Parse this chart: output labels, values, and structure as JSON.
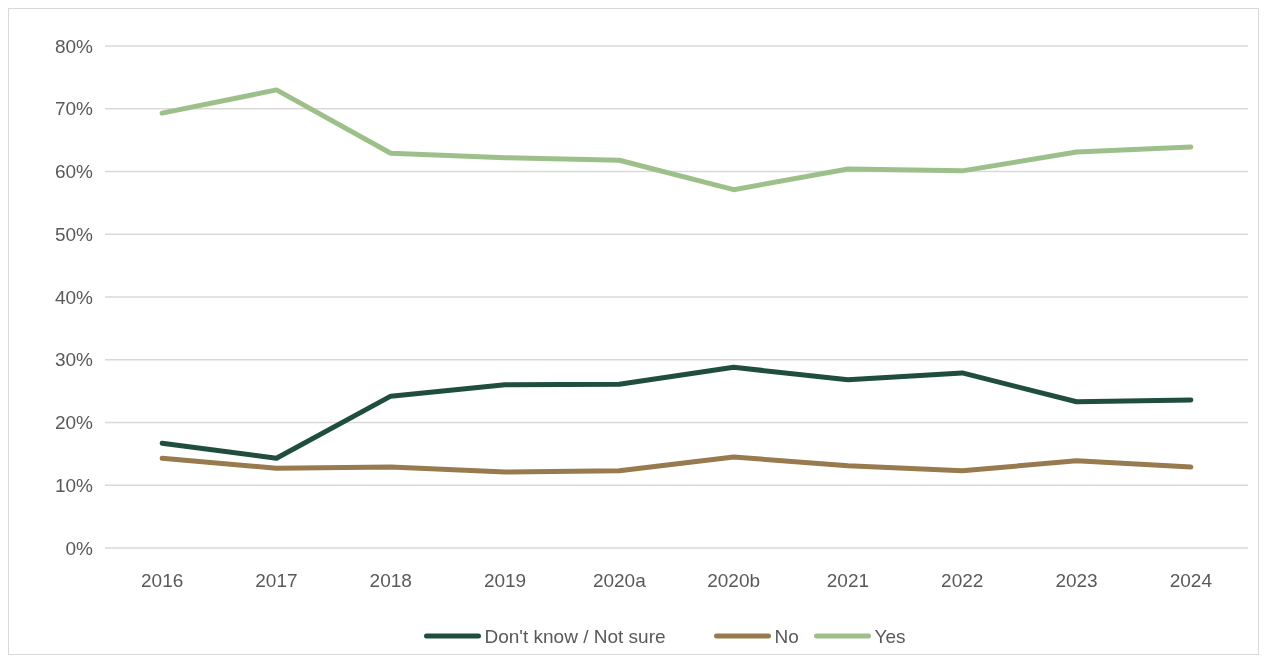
{
  "chart_data": {
    "type": "line",
    "categories": [
      "2016",
      "2017",
      "2018",
      "2019",
      "2020a",
      "2020b",
      "2021",
      "2022",
      "2023",
      "2024"
    ],
    "series": [
      {
        "name": "Don't know / Not sure",
        "color": "#1f4e3d",
        "values": [
          16.7,
          14.3,
          24.2,
          26.0,
          26.1,
          28.8,
          26.8,
          27.9,
          23.3,
          23.6
        ]
      },
      {
        "name": "No",
        "color": "#977a4e",
        "values": [
          14.3,
          12.7,
          12.9,
          12.1,
          12.3,
          14.5,
          13.1,
          12.3,
          13.9,
          12.9
        ]
      },
      {
        "name": "Yes",
        "color": "#9dc08b",
        "values": [
          69.3,
          73.0,
          62.9,
          62.2,
          61.8,
          57.1,
          60.4,
          60.1,
          63.1,
          63.9
        ]
      }
    ],
    "ylim": [
      0,
      80
    ],
    "yticks": [
      {
        "value": 0,
        "label": "0%"
      },
      {
        "value": 10,
        "label": "10%"
      },
      {
        "value": 20,
        "label": "20%"
      },
      {
        "value": 30,
        "label": "30%"
      },
      {
        "value": 40,
        "label": "40%"
      },
      {
        "value": 50,
        "label": "50%"
      },
      {
        "value": 60,
        "label": "60%"
      },
      {
        "value": 70,
        "label": "70%"
      },
      {
        "value": 80,
        "label": "80%"
      }
    ],
    "grid": "y",
    "legend": "bottom",
    "marker": "none",
    "line_style": "solid"
  }
}
